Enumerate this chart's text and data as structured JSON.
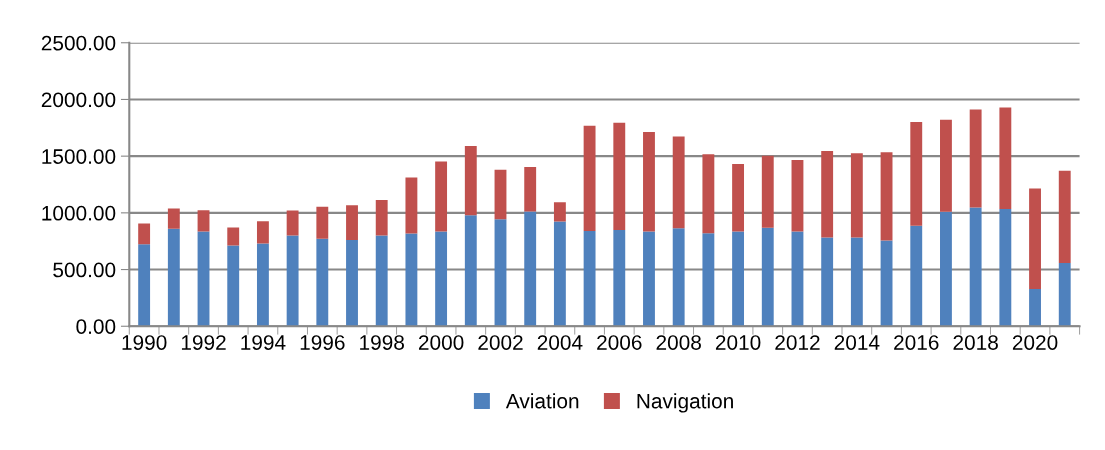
{
  "chart_data": {
    "type": "bar",
    "stacked": true,
    "categories": [
      "1990",
      null,
      "1992",
      null,
      "1994",
      null,
      "1996",
      null,
      "1998",
      null,
      "2000",
      null,
      "2002",
      null,
      "2004",
      null,
      "2006",
      null,
      "2008",
      null,
      "2010",
      null,
      "2012",
      null,
      "2014",
      null,
      "2016",
      null,
      "2018",
      null,
      "2020",
      null
    ],
    "series": [
      {
        "name": "Aviation",
        "color": "#4f81bd",
        "values": [
          724,
          859,
          836,
          713,
          730,
          801,
          771,
          760,
          801,
          818,
          836,
          979,
          944,
          1012,
          924,
          839,
          848,
          836,
          865,
          821,
          836,
          868,
          836,
          783,
          783,
          757,
          886,
          1009,
          1047,
          1035,
          328,
          557
        ]
      },
      {
        "name": "Navigation",
        "color": "#c0504d",
        "values": [
          182,
          179,
          187,
          158,
          197,
          220,
          282,
          307,
          313,
          493,
          616,
          610,
          437,
          393,
          170,
          929,
          947,
          877,
          809,
          695,
          595,
          636,
          630,
          762,
          742,
          777,
          915,
          812,
          865,
          895,
          886,
          815
        ]
      }
    ],
    "ylim": [
      0,
      2500
    ],
    "yticks": [
      {
        "value": 0,
        "label": "0.00"
      },
      {
        "value": 500,
        "label": "500.00"
      },
      {
        "value": 1000,
        "label": "1000.00"
      },
      {
        "value": 1500,
        "label": "1500.00"
      },
      {
        "value": 2000,
        "label": "2000.00"
      },
      {
        "value": 2500,
        "label": "2500.00"
      }
    ],
    "grid": "y",
    "legend": "bottom"
  }
}
